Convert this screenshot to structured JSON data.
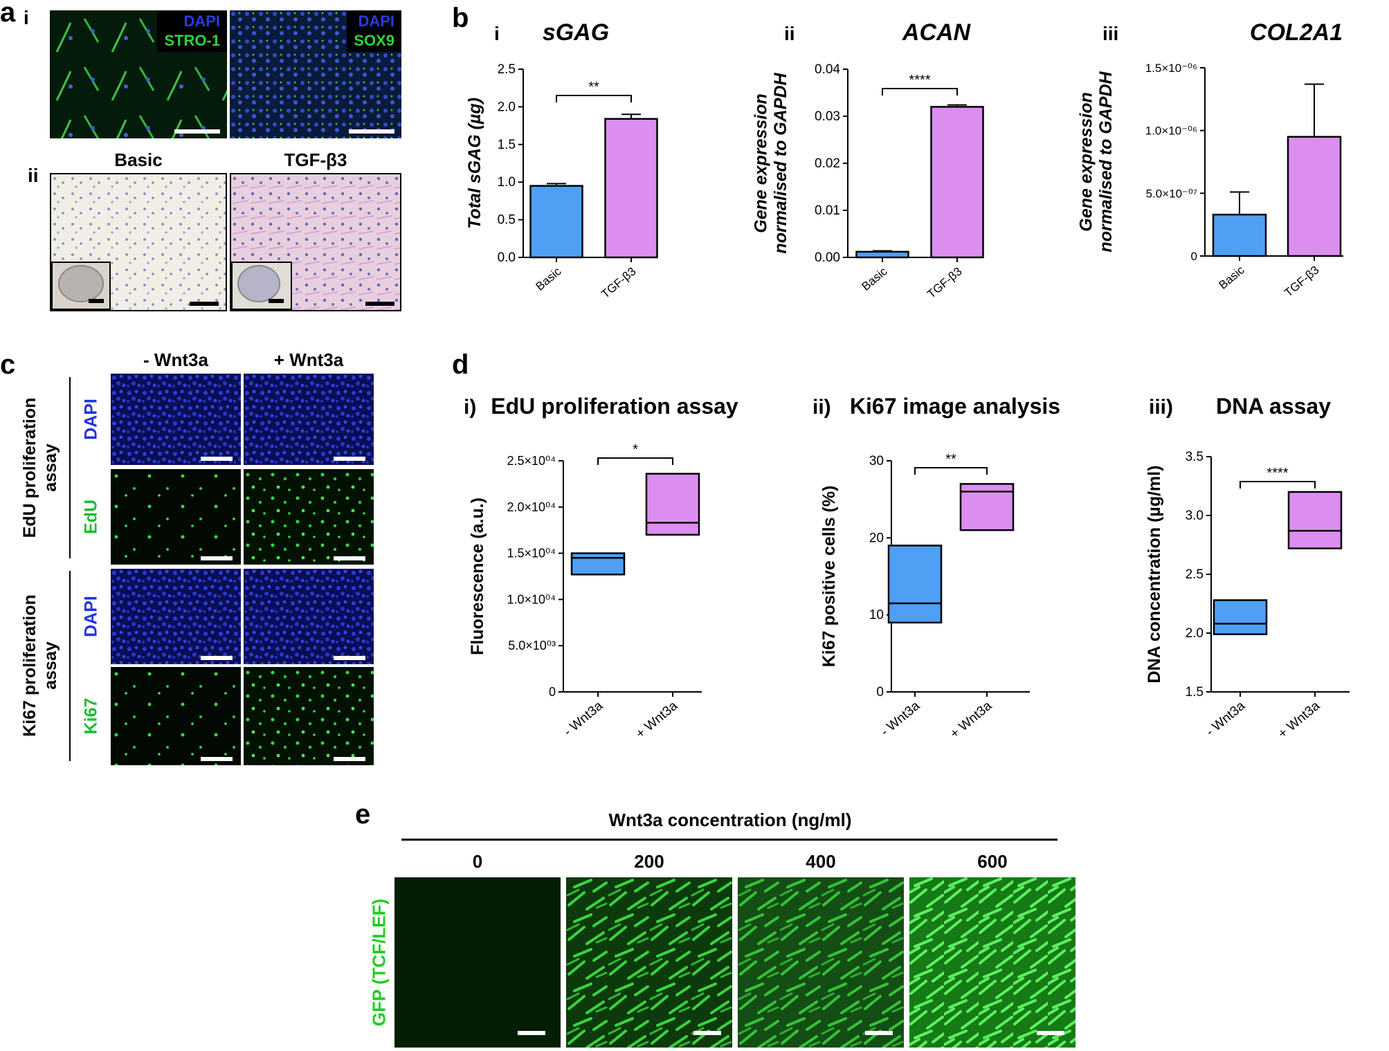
{
  "panel_a": {
    "label": "a",
    "sub_i": "i",
    "sub_ii": "ii",
    "img1": {
      "stain1": "DAPI",
      "stain2": "STRO-1"
    },
    "img2": {
      "stain1": "DAPI",
      "stain2": "SOX9"
    },
    "histo_titles": [
      "Basic",
      "TGF-β3"
    ]
  },
  "panel_b": {
    "label": "b",
    "charts": [
      {
        "roman": "i",
        "title": "sGAG",
        "ylabel": "Total sGAG (µg)"
      },
      {
        "roman": "ii",
        "title": "ACAN",
        "ylabel": "Gene expression normalised to GAPDH"
      },
      {
        "roman": "iii",
        "title": "COL2A1",
        "ylabel": "Gene expression normalised to GAPDH"
      }
    ]
  },
  "panel_c": {
    "label": "c",
    "col_headers": [
      "- Wnt3a",
      "+ Wnt3a"
    ],
    "group1": "EdU proliferation assay",
    "group2": "Ki67 proliferation assay",
    "rows": [
      "DAPI",
      "EdU",
      "DAPI",
      "Ki67"
    ]
  },
  "panel_d": {
    "label": "d",
    "charts": [
      {
        "roman": "i)",
        "title": "EdU proliferation assay",
        "ylabel": "Fluorescence (a.u.)"
      },
      {
        "roman": "ii)",
        "title": "Ki67 image analysis",
        "ylabel": "Ki67 positive cells (%)"
      },
      {
        "roman": "iii)",
        "title": "DNA assay",
        "ylabel": "DNA concentration (µg/ml)"
      }
    ]
  },
  "panel_e": {
    "label": "e",
    "header": "Wnt3a concentration (ng/ml)",
    "concentrations": [
      "0",
      "200",
      "400",
      "600"
    ],
    "ylabel": "GFP (TCF/LEF)"
  },
  "colors": {
    "basic": "#4f9ff5",
    "treated": "#dc8ef0",
    "dapi": "#2233e0",
    "green": "#22cc33"
  },
  "chart_data": [
    {
      "id": "b-i",
      "type": "bar",
      "title": "sGAG",
      "ylabel": "Total sGAG (µg)",
      "categories": [
        "Basic",
        "TGF-β3"
      ],
      "values": [
        0.95,
        1.84
      ],
      "errors": [
        0.03,
        0.06
      ],
      "ylim": [
        0,
        2.5
      ],
      "yticks": [
        0.0,
        0.5,
        1.0,
        1.5,
        2.0,
        2.5
      ],
      "ytick_labels": [
        "0.0",
        "0.5",
        "1.0",
        "1.5",
        "2.0",
        "2.5"
      ],
      "significance": "**"
    },
    {
      "id": "b-ii",
      "type": "bar",
      "title": "ACAN",
      "ylabel": "Gene expression normalised to GAPDH",
      "categories": [
        "Basic",
        "TGF-β3"
      ],
      "values": [
        0.0012,
        0.032
      ],
      "errors": [
        0.0002,
        0.0004
      ],
      "ylim": [
        0,
        0.04
      ],
      "yticks": [
        0,
        0.01,
        0.02,
        0.03,
        0.04
      ],
      "ytick_labels": [
        "0.00",
        "0.01",
        "0.02",
        "0.03",
        "0.04"
      ],
      "significance": "****"
    },
    {
      "id": "b-iii",
      "type": "bar",
      "title": "COL2A1",
      "ylabel": "Gene expression normalised to GAPDH",
      "categories": [
        "Basic",
        "TGF-β3"
      ],
      "values": [
        3.3e-07,
        9.5e-07
      ],
      "errors": [
        1.8e-07,
        4.2e-07
      ],
      "ylim": [
        0,
        1.5e-06
      ],
      "yticks": [
        0,
        5e-07,
        1e-06,
        1.5e-06
      ],
      "ytick_labels": [
        "0",
        "5.0×10⁻⁰⁷",
        "1.0×10⁻⁰⁶",
        "1.5×10⁻⁰⁶"
      ],
      "significance": ""
    },
    {
      "id": "d-i",
      "type": "box",
      "title": "EdU proliferation assay",
      "ylabel": "Fluorescence (a.u.)",
      "categories": [
        "- Wnt3a",
        "+ Wnt3a"
      ],
      "boxes": [
        {
          "min": 12700,
          "median": 14500,
          "max": 15000
        },
        {
          "min": 17000,
          "median": 18300,
          "max": 23600
        }
      ],
      "ylim": [
        0,
        25000
      ],
      "yticks": [
        0,
        5000,
        10000,
        15000,
        20000,
        25000
      ],
      "ytick_labels": [
        "0",
        "5.0×10⁰³",
        "1.0×10⁰⁴",
        "1.5×10⁰⁴",
        "2.0×10⁰⁴",
        "2.5×10⁰⁴"
      ],
      "significance": "*"
    },
    {
      "id": "d-ii",
      "type": "box",
      "title": "Ki67 image analysis",
      "ylabel": "Ki67 positive cells (%)",
      "categories": [
        "- Wnt3a",
        "+ Wnt3a"
      ],
      "boxes": [
        {
          "min": 9,
          "median": 11.5,
          "max": 19
        },
        {
          "min": 21,
          "median": 26,
          "max": 27
        }
      ],
      "ylim": [
        0,
        30
      ],
      "yticks": [
        0,
        10,
        20,
        30
      ],
      "ytick_labels": [
        "0",
        "10",
        "20",
        "30"
      ],
      "significance": "**"
    },
    {
      "id": "d-iii",
      "type": "box",
      "title": "DNA assay",
      "ylabel": "DNA concentration (µg/ml)",
      "categories": [
        "- Wnt3a",
        "+ Wnt3a"
      ],
      "boxes": [
        {
          "min": 1.99,
          "median": 2.08,
          "max": 2.28
        },
        {
          "min": 2.72,
          "median": 2.87,
          "max": 3.2
        }
      ],
      "ylim": [
        1.5,
        3.5
      ],
      "yticks": [
        1.5,
        2.0,
        2.5,
        3.0,
        3.5
      ],
      "ytick_labels": [
        "1.5",
        "2.0",
        "2.5",
        "3.0",
        "3.5"
      ],
      "significance": "****"
    }
  ]
}
